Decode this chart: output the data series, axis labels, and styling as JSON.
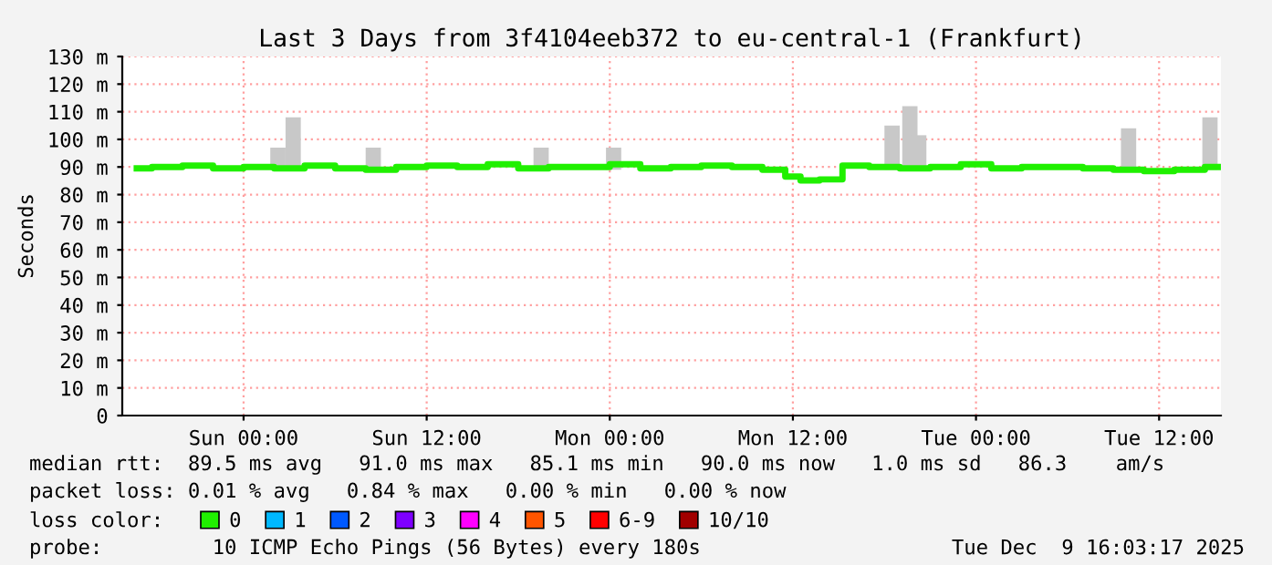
{
  "chart_data": {
    "type": "line",
    "title": "Last 3 Days from 3f4104eeb372 to eu-central-1 (Frankfurt)",
    "ylabel": "Seconds",
    "xlim": [
      "2025-12-06T16:03",
      "2025-12-09T16:03"
    ],
    "xticks": [
      {
        "value": "2025-12-07T00:00",
        "label": "Sun 00:00"
      },
      {
        "value": "2025-12-07T12:00",
        "label": "Sun 12:00"
      },
      {
        "value": "2025-12-08T00:00",
        "label": "Mon 00:00"
      },
      {
        "value": "2025-12-08T12:00",
        "label": "Mon 12:00"
      },
      {
        "value": "2025-12-09T00:00",
        "label": "Tue 00:00"
      },
      {
        "value": "2025-12-09T12:00",
        "label": "Tue 12:00"
      }
    ],
    "ylim": [
      0,
      130
    ],
    "yticks": [
      0,
      {
        "value": 10,
        "label": "10 m"
      },
      {
        "value": 20,
        "label": "20 m"
      },
      {
        "value": 30,
        "label": "30 m"
      },
      {
        "value": 40,
        "label": "40 m"
      },
      {
        "value": 50,
        "label": "50 m"
      },
      {
        "value": 60,
        "label": "60 m"
      },
      {
        "value": 70,
        "label": "70 m"
      },
      {
        "value": 80,
        "label": "80 m"
      },
      {
        "value": 90,
        "label": "90 m"
      },
      {
        "value": 100,
        "label": "100 m"
      },
      {
        "value": 110,
        "label": "110 m"
      },
      {
        "value": 120,
        "label": "120 m"
      },
      {
        "value": 130,
        "label": "130 m"
      }
    ],
    "grid": true,
    "legend": "bottom",
    "legend_title": "loss color:",
    "series": [
      {
        "type": "bar",
        "color": "#c8c8c8",
        "x": [
          "2025-12-07T02:15",
          "2025-12-07T03:15",
          "2025-12-07T08:30",
          "2025-12-07T19:30",
          "2025-12-08T00:15",
          "2025-12-08T18:30",
          "2025-12-08T19:40",
          "2025-12-08T20:15",
          "2025-12-09T10:00",
          "2025-12-09T15:20"
        ],
        "base": [
          89,
          89,
          89,
          89,
          89,
          89,
          89,
          89,
          89,
          89
        ],
        "values": [
          8,
          19,
          8,
          8,
          8,
          16,
          23,
          12.5,
          15,
          19
        ]
      },
      {
        "name": "0",
        "color": "#20f000",
        "x": [
          "2025-12-06T17:00",
          "2025-12-06T19:00",
          "2025-12-06T21:00",
          "2025-12-06T23:00",
          "2025-12-07T01:00",
          "2025-12-07T03:00",
          "2025-12-07T05:00",
          "2025-12-07T07:00",
          "2025-12-07T09:00",
          "2025-12-07T11:00",
          "2025-12-07T13:00",
          "2025-12-07T15:00",
          "2025-12-07T17:00",
          "2025-12-07T19:00",
          "2025-12-07T21:00",
          "2025-12-07T23:00",
          "2025-12-08T01:00",
          "2025-12-08T03:00",
          "2025-12-08T05:00",
          "2025-12-08T07:00",
          "2025-12-08T09:00",
          "2025-12-08T11:00",
          "2025-12-08T12:00",
          "2025-12-08T13:00",
          "2025-12-08T14:30",
          "2025-12-08T16:00",
          "2025-12-08T18:00",
          "2025-12-08T20:00",
          "2025-12-08T22:00",
          "2025-12-09T00:00",
          "2025-12-09T02:00",
          "2025-12-09T04:00",
          "2025-12-09T06:00",
          "2025-12-09T08:00",
          "2025-12-09T10:00",
          "2025-12-09T12:00",
          "2025-12-09T14:00",
          "2025-12-09T16:00"
        ],
        "values": [
          89.5,
          90,
          90.5,
          89.5,
          90,
          89.5,
          90.5,
          89.5,
          89,
          90,
          90.5,
          90,
          91,
          89.5,
          90,
          90,
          91,
          89.5,
          90,
          90.5,
          90,
          89,
          86.5,
          85.1,
          85.5,
          90.5,
          90,
          89.5,
          90,
          91,
          89.5,
          90,
          90,
          89.5,
          89,
          88.5,
          89,
          90
        ]
      },
      {
        "name": "1",
        "color": "#00b8ff"
      },
      {
        "name": "2",
        "color": "#0059ff"
      },
      {
        "name": "3",
        "color": "#7e00ff"
      },
      {
        "name": "4",
        "color": "#ff00ff"
      },
      {
        "name": "5",
        "color": "#ff5500"
      },
      {
        "name": "6-9",
        "color": "#ff0000"
      },
      {
        "name": "10/10",
        "color": "#a10000"
      }
    ],
    "annotations": [
      "median rtt:  89.5 ms avg   91.0 ms max   85.1 ms min   90.0 ms now   1.0 ms sd   86.3    am/s",
      "packet loss: 0.01 % avg   0.84 % max   0.00 % min   0.00 % now",
      "probe:         10 ICMP Echo Pings (56 Bytes) every 180s",
      "Tue Dec  9 16:03:17 2025"
    ]
  }
}
